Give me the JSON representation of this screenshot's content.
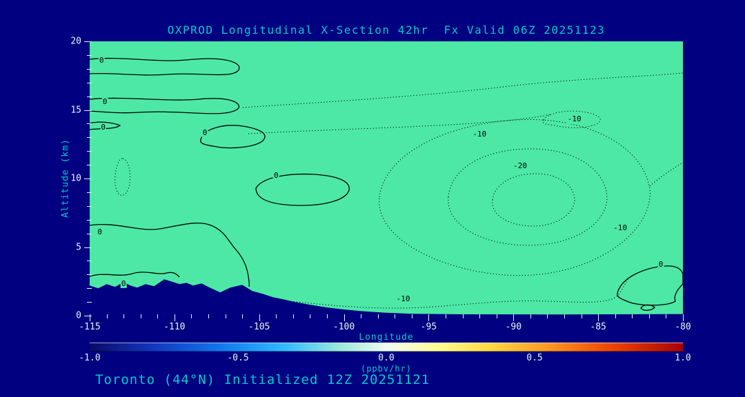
{
  "title": "OXPROD Longitudinal X-Section 42hr  Fx Valid 06Z 20251123",
  "footer": "Toronto (44°N) Initialized 12Z 20251121",
  "colors": {
    "background": "#000080",
    "field_fill": "#4DE8A6",
    "heading_text": "#00CCCC",
    "tick_text": "#E8F4F0",
    "contour_line": "#000000",
    "terrain_fill": "#000080"
  },
  "chart_data": {
    "type": "contour",
    "title": "OXPROD Longitudinal X-Section 42hr  Fx Valid 06Z 20251123",
    "subtitle": "Toronto (44°N) Initialized 12Z 20251121",
    "xlabel": "Longitude",
    "ylabel": "Altitude (km)",
    "xlim": [
      -115,
      -80
    ],
    "ylim": [
      0,
      20
    ],
    "x_ticks": [
      -115,
      -110,
      -105,
      -100,
      -95,
      -90,
      -85,
      -80
    ],
    "y_ticks": [
      0,
      5,
      10,
      15,
      20
    ],
    "x_minor_step": 1,
    "y_minor_step": 1,
    "units": "ppbv/hr",
    "solid_contour_level": 0,
    "dotted_contour_levels": [
      -10,
      -20
    ],
    "contour_labels": [
      {
        "text": "0",
        "lon": -114.3,
        "alt": 18.6,
        "style": "solid"
      },
      {
        "text": "0",
        "lon": -114.1,
        "alt": 15.6,
        "style": "solid"
      },
      {
        "text": "0",
        "lon": -114.2,
        "alt": 13.7,
        "style": "solid"
      },
      {
        "text": "0",
        "lon": -108.2,
        "alt": 13.3,
        "style": "solid"
      },
      {
        "text": "0",
        "lon": -104.0,
        "alt": 10.2,
        "style": "solid"
      },
      {
        "text": "0",
        "lon": -114.4,
        "alt": 6.1,
        "style": "solid"
      },
      {
        "text": "0",
        "lon": -113.0,
        "alt": 2.3,
        "style": "solid"
      },
      {
        "text": "-10",
        "lon": -92.0,
        "alt": 13.2,
        "style": "dotted"
      },
      {
        "text": "-20",
        "lon": -89.6,
        "alt": 10.9,
        "style": "dotted"
      },
      {
        "text": "-10",
        "lon": -86.4,
        "alt": 14.3,
        "style": "dotted"
      },
      {
        "text": "-10",
        "lon": -83.7,
        "alt": 6.4,
        "style": "dotted"
      },
      {
        "text": "-10",
        "lon": -96.5,
        "alt": 1.2,
        "style": "dotted"
      },
      {
        "text": "0",
        "lon": -81.3,
        "alt": 3.7,
        "style": "solid"
      }
    ],
    "colorbar": {
      "ticks": [
        "-1.0",
        "-0.5",
        "0.0",
        "0.5",
        "1.0"
      ],
      "label": "(ppbv/hr)",
      "min": -1.0,
      "max": 1.0,
      "gradient": [
        "#0a0a66 0%",
        "#1133bb 10%",
        "#1177ee 22%",
        "#33bbff 33%",
        "#99e8d8 42%",
        "#eefcf0 50%",
        "#ffff99 58%",
        "#ffdd44 67%",
        "#ff9922 77%",
        "#ee4400 88%",
        "#aa0000 100%"
      ]
    },
    "terrain_profile_km": [
      [
        -115,
        2.2
      ],
      [
        -114.5,
        2.0
      ],
      [
        -114,
        2.3
      ],
      [
        -113.5,
        2.1
      ],
      [
        -113,
        2.45
      ],
      [
        -112.6,
        2.2
      ],
      [
        -112.2,
        2.05
      ],
      [
        -111.7,
        2.3
      ],
      [
        -111.2,
        2.15
      ],
      [
        -110.6,
        2.65
      ],
      [
        -110.2,
        2.5
      ],
      [
        -109.7,
        2.3
      ],
      [
        -109.3,
        2.4
      ],
      [
        -108.9,
        2.2
      ],
      [
        -108.4,
        2.35
      ],
      [
        -108,
        2.1
      ],
      [
        -107.3,
        1.7
      ],
      [
        -106.7,
        2.05
      ],
      [
        -106,
        2.25
      ],
      [
        -105.4,
        1.8
      ],
      [
        -104.8,
        1.6
      ],
      [
        -104.2,
        1.35
      ],
      [
        -103.6,
        1.2
      ],
      [
        -102.9,
        1.0
      ],
      [
        -102,
        0.8
      ],
      [
        -101,
        0.6
      ],
      [
        -100,
        0.45
      ],
      [
        -99,
        0.33
      ],
      [
        -97.6,
        0.22
      ],
      [
        -96,
        0.14
      ],
      [
        -93,
        0.1
      ],
      [
        -88,
        0.09
      ],
      [
        -84,
        0.1
      ],
      [
        -80,
        0.12
      ]
    ]
  }
}
